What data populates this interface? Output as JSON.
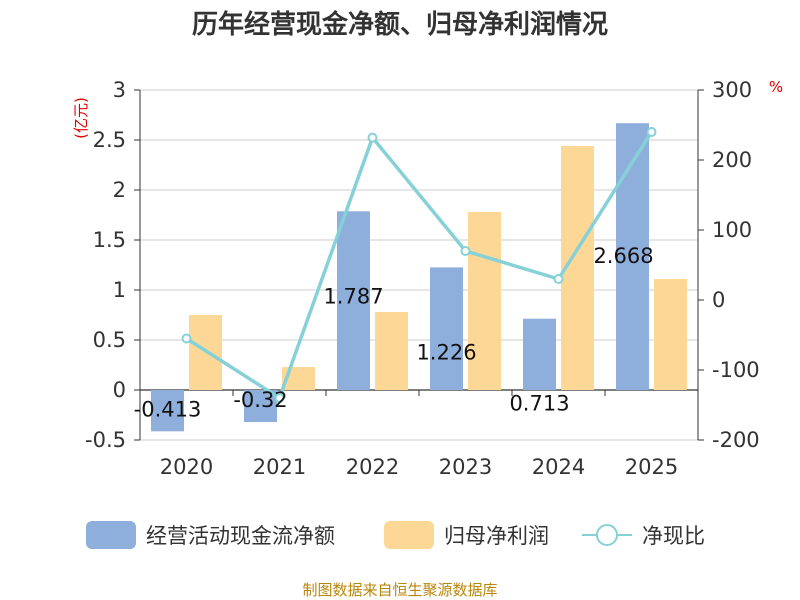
{
  "chart_data": {
    "type": "bar",
    "title": "历年经营现金净额、归母净利润情况",
    "categories": [
      "2020",
      "2021",
      "2022",
      "2023",
      "2024",
      "2025"
    ],
    "left_axis": {
      "unit": "(亿元)",
      "ylim": [
        -0.5,
        3
      ],
      "ticks": [
        -0.5,
        0,
        0.5,
        1,
        1.5,
        2,
        2.5,
        3
      ],
      "tick_labels": [
        "-0.5",
        "0",
        "0.5",
        "1",
        "1.5",
        "2",
        "2.5",
        "3"
      ]
    },
    "right_axis": {
      "unit": "%",
      "ylim": [
        -200,
        300
      ],
      "ticks": [
        -200,
        -100,
        0,
        100,
        200,
        300
      ],
      "tick_labels": [
        "-200",
        "-100",
        "0",
        "100",
        "200",
        "300"
      ]
    },
    "series": [
      {
        "name": "经营活动现金流净额",
        "kind": "bar",
        "axis": "left",
        "color": "#8eaedc",
        "values": [
          -0.413,
          -0.32,
          1.787,
          1.226,
          0.713,
          2.668
        ],
        "labels": [
          "-0.413",
          "-0.32",
          "1.787",
          "1.226",
          "0.713",
          "2.668"
        ]
      },
      {
        "name": "归母净利润",
        "kind": "bar",
        "axis": "left",
        "color": "#fdd795",
        "values": [
          0.75,
          0.23,
          0.78,
          1.78,
          2.44,
          1.11
        ]
      },
      {
        "name": "净现比",
        "kind": "line",
        "axis": "right",
        "color": "#86d1d8",
        "values": [
          -55,
          -140,
          232,
          70,
          30,
          240
        ]
      }
    ],
    "grid": true,
    "legend_position": "bottom"
  },
  "source_text": "制图数据来自恒生聚源数据库"
}
